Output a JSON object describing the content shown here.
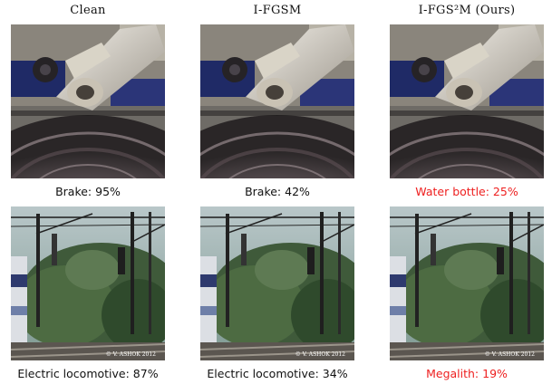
{
  "figure": {
    "columns": [
      {
        "header": "Clean"
      },
      {
        "header": "I-FGSM"
      },
      {
        "header": "I-FGS²M (Ours)"
      }
    ],
    "rows": [
      {
        "scene": "brake-disc",
        "captions": [
          "Brake: 95%",
          "Brake: 42%",
          "Water bottle: 25%"
        ]
      },
      {
        "scene": "train-overhead-lines",
        "captions": [
          "Electric locomotive: 87%",
          "Electric locomotive: 34%",
          "Megalith: 19%"
        ],
        "watermark": "© V. ASHOK 2012"
      }
    ],
    "colors": {
      "caption": "#111111",
      "adversarial_caption": "#ee2020"
    }
  }
}
